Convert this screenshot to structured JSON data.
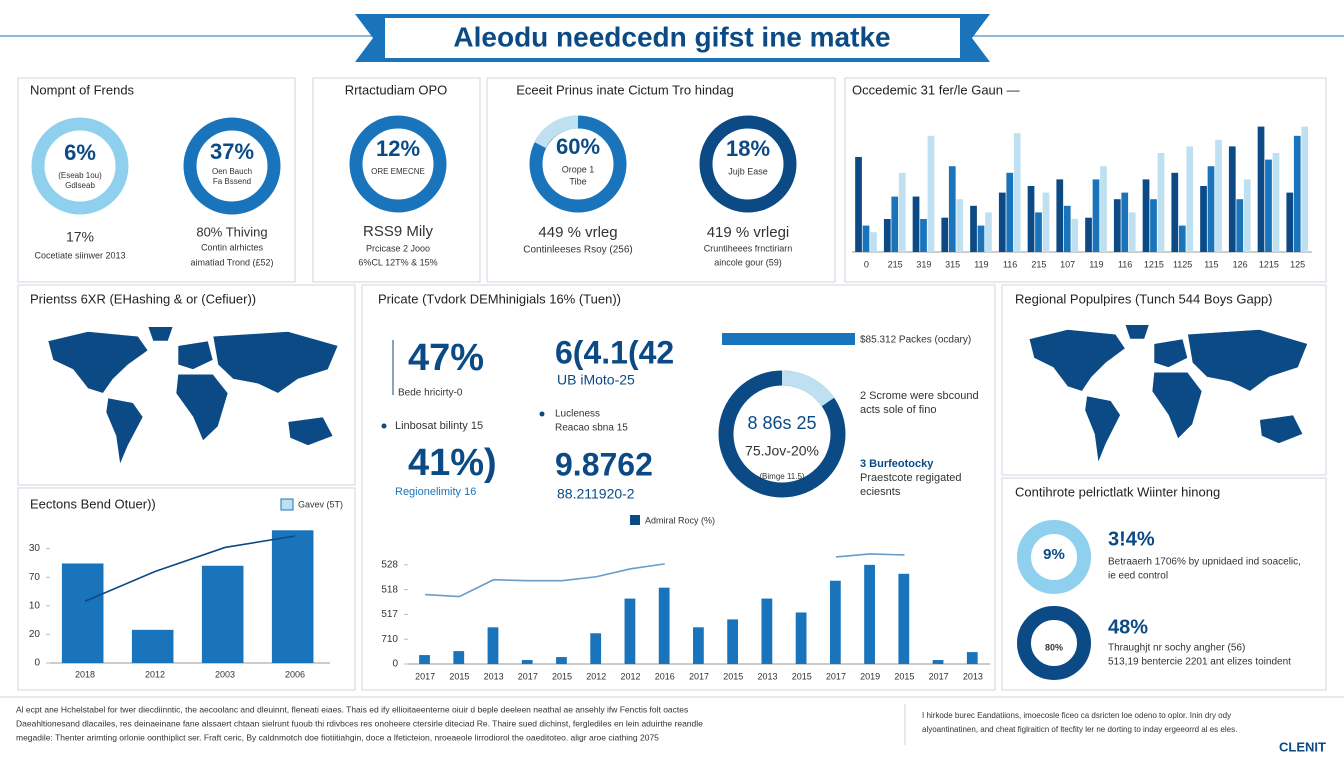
{
  "title": "Aleodu needcedn gifst ine matke",
  "panels": {
    "friends": {
      "heading": "Nompnt of Frends",
      "donuts": [
        {
          "value": "6%",
          "caption": [
            "(Eseab 1ou)",
            "Gdlseab"
          ]
        },
        {
          "value": "37%",
          "caption": [
            "Oen Bauch",
            "Fa Bssend"
          ]
        }
      ],
      "stats": [
        {
          "value": "17%",
          "caption": [
            "Cocetiate siinwer 2013"
          ]
        },
        {
          "value": "80% Thiving",
          "caption": [
            "Contin alrhictes",
            "aimatiad Trond (£52)"
          ]
        }
      ]
    },
    "retention": {
      "heading": "Rrtactudiam OPO",
      "donut": {
        "value": "12%",
        "caption": [
          "ORE EMECNE"
        ]
      },
      "stat": {
        "value": "RSS9 Mily",
        "caption": [
          "Prcicase 2 Jooo",
          "6%CL 12T% & 15%"
        ]
      }
    },
    "prinus": {
      "heading": "Eceeit Prinus inate Cictum Tro hindag",
      "donuts": [
        {
          "value": "60%",
          "caption": [
            "Orope 1",
            "Tibe"
          ]
        },
        {
          "value": "18%",
          "caption": [
            "Jujb Ease"
          ]
        }
      ],
      "stats": [
        {
          "value": "449 % vrleg",
          "caption": [
            "Continleeses Rsoy (256)"
          ]
        },
        {
          "value": "419 % vrlegi",
          "caption": [
            "Cruntiheees frnctiriarn",
            "aincole gour (59)"
          ]
        }
      ]
    },
    "map_left": {
      "heading": "Prientss 6XR (EHashing & or (Cefiuer))"
    },
    "private": {
      "heading": "Pricate (Tvdork DEMhinigials 16% (Tuen))",
      "figures": [
        {
          "value": "47%",
          "caption": [
            "Bede hricirty-0"
          ]
        },
        {
          "value": "6(4.1(42",
          "caption": [
            "UB iMoto-25"
          ]
        },
        {
          "value": "",
          "caption": [
            "Linbosat bilinty 15"
          ]
        },
        {
          "value": "",
          "caption": [
            "Lucleness",
            "Reacao sbna 15"
          ]
        },
        {
          "value": "41%)",
          "caption": [
            "Regionelimity 16"
          ]
        },
        {
          "value": "9.8762",
          "caption": [
            "88.211920-2"
          ]
        }
      ],
      "bar_label": "$85.312 Packes (ocdary)",
      "donut": {
        "value": "8 86s 25",
        "caption": [
          "75.Jov-20%",
          "(Bimge 11.5)"
        ]
      },
      "notes": [
        [
          "2 Scrome were sbcound",
          "acts sole of fino"
        ],
        [
          "3 Burfeotocky",
          "Praestcote regigated",
          "eciesnts"
        ]
      ]
    },
    "map_right": {
      "heading": "Regional Populpires (Tunch 544 Boys Gapp)"
    },
    "winter": {
      "heading": "Contihrote pelrictlatk Wiinter hinong",
      "items": [
        {
          "donut": "9%",
          "value": "3!4%",
          "caption": [
            "Betraaerh 1706% by upnidaed ind soacelic,",
            "ie eed control"
          ]
        },
        {
          "donut": "80%",
          "value": "48%",
          "caption": [
            "Thraughjt nr sochy angher (56)",
            "513,19 bentercie 2201 ant elizes toindent"
          ]
        }
      ]
    }
  },
  "footer": {
    "left": [
      "Al ecpt ane Hchelstabel for twer diecdiinntic, the aecoolanc and dleuinnt, fleneati eiaes. Thais ed ify ellioitaeenterne oiuir d beple deeleen neathal ae ansehly ifw Fenctis folt oactes",
      "Daeahltionesand dlacailes, res deinaeinane fane alssaert chtaan sielrunt fuoub thi rdivbces res onoheere ctersirle diteciad Re. Thaire sued dichinst, ferglediles en lein aduirthe reandle",
      "megadile: Thenter arimting orlonie oonthiplict ser. Fraft ceric, By caldnmotch doe fiotiitiahgin, doce a lfeticteion, nroeaeole lirrodiorol the oaeditoteo. aligr aroe ciathing 2075"
    ],
    "right": [
      "I hirkode burec Eandatiions, imoecosle ficeo ca dsricten loe odeno to oplor. Inin dry ody",
      "alyoantinatinen, and cheat figlraiticn of ltecfity ler ne dorting to inday ergeeorrd al es eles."
    ],
    "brand": "CLENIT"
  },
  "chart_data": [
    {
      "type": "bar",
      "title": "Occedemic 31 fer/le Gaun —",
      "categories": [
        "0",
        "215",
        "319",
        "315",
        "119",
        "116",
        "215",
        "107",
        "119",
        "116",
        "1215",
        "1125",
        "115",
        "126",
        "1215",
        "125"
      ],
      "series": [
        {
          "color": "#0b4a85",
          "values": [
            72,
            25,
            42,
            26,
            35,
            45,
            50,
            55,
            26,
            40,
            55,
            60,
            50,
            80,
            95,
            45
          ]
        },
        {
          "color": "#1a74bb",
          "values": [
            20,
            42,
            25,
            65,
            20,
            60,
            30,
            35,
            55,
            45,
            40,
            20,
            65,
            40,
            70,
            88
          ]
        },
        {
          "color": "#bfe0f0",
          "values": [
            15,
            60,
            88,
            40,
            30,
            90,
            45,
            25,
            65,
            30,
            75,
            80,
            85,
            55,
            75,
            95
          ]
        }
      ],
      "ylim": [
        0,
        100
      ]
    },
    {
      "type": "bar",
      "title": "Eectons Bend Otuer))",
      "categories": [
        "2018",
        "2012",
        "2003",
        "2006"
      ],
      "series": [
        {
          "name": "Gavev (5T)",
          "color": "#1a74bb",
          "values": [
            87,
            29,
            85,
            116
          ]
        },
        {
          "type": "line",
          "color": "#0b4a85",
          "values": [
            54,
            80,
            101,
            111
          ]
        }
      ],
      "ylim": [
        0,
        125
      ],
      "yticks": [
        0,
        {
          "value": 25,
          "label": "20"
        },
        {
          "value": 50,
          "label": "10"
        },
        {
          "value": 75,
          "label": "70"
        },
        {
          "value": 100,
          "label": "30"
        }
      ]
    },
    {
      "type": "bar",
      "categories": [
        "2017",
        "2015",
        "2013",
        "2017",
        "2015",
        "2012",
        "2012",
        "2016",
        "2017",
        "2015",
        "2013",
        "2015",
        "2017",
        "2019",
        "2015",
        "2017",
        "2013"
      ],
      "series": [
        {
          "name": "Admiral Rocy (%)",
          "color": "#1a74bb",
          "values": [
            9,
            13,
            37,
            4,
            7,
            31,
            66,
            77,
            37,
            45,
            66,
            52,
            84,
            100,
            91,
            4,
            12
          ]
        },
        {
          "type": "line",
          "color": "#6a9cc9",
          "values": [
            70,
            68,
            85,
            84,
            84,
            88,
            96,
            101,
            null,
            null,
            null,
            null,
            108,
            111,
            110,
            null,
            null
          ]
        }
      ],
      "ylim": [
        0,
        115
      ],
      "yticks": [
        0,
        {
          "value": 25,
          "label": "710"
        },
        {
          "value": 50,
          "label": "517"
        },
        {
          "value": 75,
          "label": "518"
        },
        {
          "value": 100,
          "label": "528"
        }
      ]
    }
  ]
}
